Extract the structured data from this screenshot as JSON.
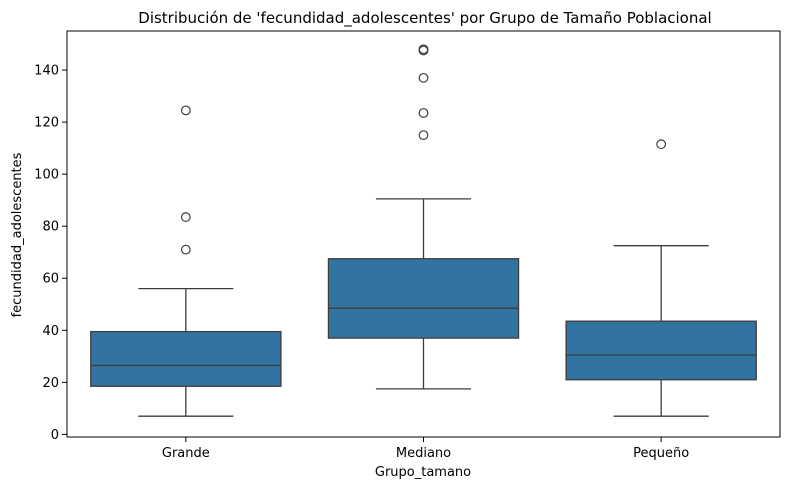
{
  "chart_data": {
    "type": "box",
    "title": "Distribución de 'fecundidad_adolescentes' por Grupo de Tamaño Poblacional",
    "xlabel": "Grupo_tamano",
    "ylabel": "fecundidad_adolescentes",
    "ylim": [
      -1,
      155
    ],
    "yticks": [
      0,
      20,
      40,
      60,
      80,
      100,
      120,
      140
    ],
    "categories": [
      "Grande",
      "Mediano",
      "Pequeño"
    ],
    "boxes": [
      {
        "category": "Grande",
        "whisker_low": 7,
        "q1": 18.5,
        "median": 26.5,
        "q3": 39.5,
        "whisker_high": 56,
        "outliers": [
          71,
          83.5,
          124.5
        ]
      },
      {
        "category": "Mediano",
        "whisker_low": 17.5,
        "q1": 37,
        "median": 48.5,
        "q3": 67.5,
        "whisker_high": 90.5,
        "outliers": [
          115,
          123.5,
          137,
          147.5,
          148
        ]
      },
      {
        "category": "Pequeño",
        "whisker_low": 7,
        "q1": 21,
        "median": 30.5,
        "q3": 43.5,
        "whisker_high": 72.5,
        "outliers": [
          111.5
        ]
      }
    ],
    "colors": {
      "box_fill": "#3274a1",
      "line": "#3d3d3d",
      "axis": "#000000"
    },
    "grid": false,
    "legend": "none"
  }
}
